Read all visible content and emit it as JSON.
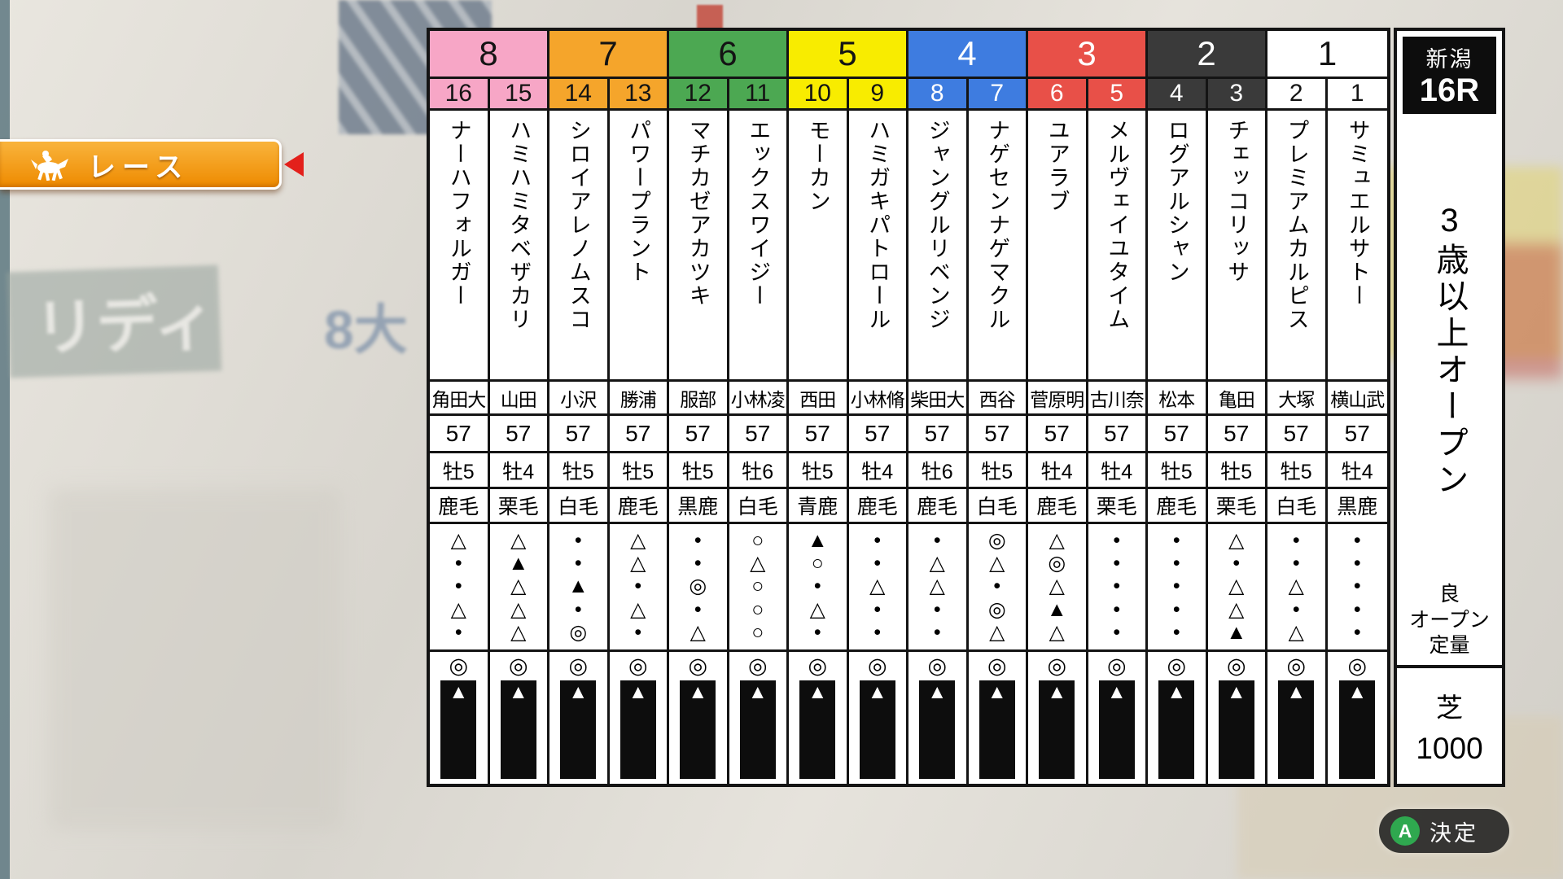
{
  "background": {
    "glyph_left": "リディ",
    "glyph_mid": "8大"
  },
  "nav_label": {
    "text": "レース"
  },
  "race_info": {
    "track": "新潟",
    "race_number": "16R",
    "conditions": "3歳以上オープン",
    "going": "良",
    "race_class": "オープン",
    "weight_rule": "定量",
    "surface": "芝",
    "distance": "1000"
  },
  "confirm": {
    "button_key": "A",
    "label": "決定"
  },
  "table": {
    "odds_mark": "◎",
    "bar_mark": "▲",
    "frames": [
      {
        "number": "8",
        "color": "#f7a6c6",
        "text": "#141414"
      },
      {
        "number": "7",
        "color": "#f5a52b",
        "text": "#141414"
      },
      {
        "number": "6",
        "color": "#4ca852",
        "text": "#141414"
      },
      {
        "number": "5",
        "color": "#f8ec00",
        "text": "#141414"
      },
      {
        "number": "4",
        "color": "#3e7ce0",
        "text": "#ffffff"
      },
      {
        "number": "3",
        "color": "#e85048",
        "text": "#ffffff"
      },
      {
        "number": "2",
        "color": "#3a3a3a",
        "text": "#ffffff"
      },
      {
        "number": "1",
        "color": "#ffffff",
        "text": "#141414"
      }
    ],
    "horses": [
      {
        "number": "16",
        "frame": "8",
        "name": "ナーハフォルガー",
        "jockey": "角田大",
        "weight": "57",
        "sex_age": "牡5",
        "coat": "鹿毛",
        "marks": [
          "△",
          "•",
          "•",
          "△",
          "•"
        ]
      },
      {
        "number": "15",
        "frame": "8",
        "name": "ハミハミタベザカリ",
        "jockey": "山田",
        "weight": "57",
        "sex_age": "牡4",
        "coat": "栗毛",
        "marks": [
          "△",
          "▲",
          "△",
          "△",
          "△"
        ]
      },
      {
        "number": "14",
        "frame": "7",
        "name": "シロイアレノムスコ",
        "jockey": "小沢",
        "weight": "57",
        "sex_age": "牡5",
        "coat": "白毛",
        "marks": [
          "•",
          "•",
          "▲",
          "•",
          "◎"
        ]
      },
      {
        "number": "13",
        "frame": "7",
        "name": "パワープラント",
        "jockey": "勝浦",
        "weight": "57",
        "sex_age": "牡5",
        "coat": "鹿毛",
        "marks": [
          "△",
          "△",
          "•",
          "△",
          "•"
        ]
      },
      {
        "number": "12",
        "frame": "6",
        "name": "マチカゼアカツキ",
        "jockey": "服部",
        "weight": "57",
        "sex_age": "牡5",
        "coat": "黒鹿",
        "marks": [
          "•",
          "•",
          "◎",
          "•",
          "△"
        ]
      },
      {
        "number": "11",
        "frame": "6",
        "name": "エックスワイジー",
        "jockey": "小林凌",
        "weight": "57",
        "sex_age": "牡6",
        "coat": "白毛",
        "marks": [
          "○",
          "△",
          "○",
          "○",
          "○"
        ]
      },
      {
        "number": "10",
        "frame": "5",
        "name": "モーカン",
        "jockey": "西田",
        "weight": "57",
        "sex_age": "牡5",
        "coat": "青鹿",
        "marks": [
          "▲",
          "○",
          "•",
          "△",
          "•"
        ]
      },
      {
        "number": "9",
        "frame": "5",
        "name": "ハミガキパトロール",
        "jockey": "小林脩",
        "weight": "57",
        "sex_age": "牡4",
        "coat": "鹿毛",
        "marks": [
          "•",
          "•",
          "△",
          "•",
          "•"
        ]
      },
      {
        "number": "8",
        "frame": "4",
        "name": "ジャングルリベンジ",
        "jockey": "柴田大",
        "weight": "57",
        "sex_age": "牡6",
        "coat": "鹿毛",
        "marks": [
          "•",
          "△",
          "△",
          "•",
          "•"
        ]
      },
      {
        "number": "7",
        "frame": "4",
        "name": "ナゲセンナゲマクル",
        "jockey": "西谷",
        "weight": "57",
        "sex_age": "牡5",
        "coat": "白毛",
        "marks": [
          "◎",
          "△",
          "•",
          "◎",
          "△"
        ]
      },
      {
        "number": "6",
        "frame": "3",
        "name": "ユアラブ",
        "jockey": "菅原明",
        "weight": "57",
        "sex_age": "牡4",
        "coat": "鹿毛",
        "marks": [
          "△",
          "◎",
          "△",
          "▲",
          "△"
        ]
      },
      {
        "number": "5",
        "frame": "3",
        "name": "メルヴェイユタイム",
        "jockey": "古川奈",
        "weight": "57",
        "sex_age": "牡4",
        "coat": "栗毛",
        "marks": [
          "•",
          "•",
          "•",
          "•",
          "•"
        ]
      },
      {
        "number": "4",
        "frame": "2",
        "name": "ログアルシャン",
        "jockey": "松本",
        "weight": "57",
        "sex_age": "牡5",
        "coat": "鹿毛",
        "marks": [
          "•",
          "•",
          "•",
          "•",
          "•"
        ]
      },
      {
        "number": "3",
        "frame": "2",
        "name": "チェッコリッサ",
        "jockey": "亀田",
        "weight": "57",
        "sex_age": "牡5",
        "coat": "栗毛",
        "marks": [
          "△",
          "•",
          "△",
          "△",
          "▲"
        ]
      },
      {
        "number": "2",
        "frame": "1",
        "name": "プレミアムカルピス",
        "jockey": "大塚",
        "weight": "57",
        "sex_age": "牡5",
        "coat": "白毛",
        "marks": [
          "•",
          "•",
          "△",
          "•",
          "△"
        ]
      },
      {
        "number": "1",
        "frame": "1",
        "name": "サミュエルサトー",
        "jockey": "横山武",
        "weight": "57",
        "sex_age": "牡4",
        "coat": "黒鹿",
        "marks": [
          "•",
          "•",
          "•",
          "•",
          "•"
        ]
      }
    ]
  }
}
